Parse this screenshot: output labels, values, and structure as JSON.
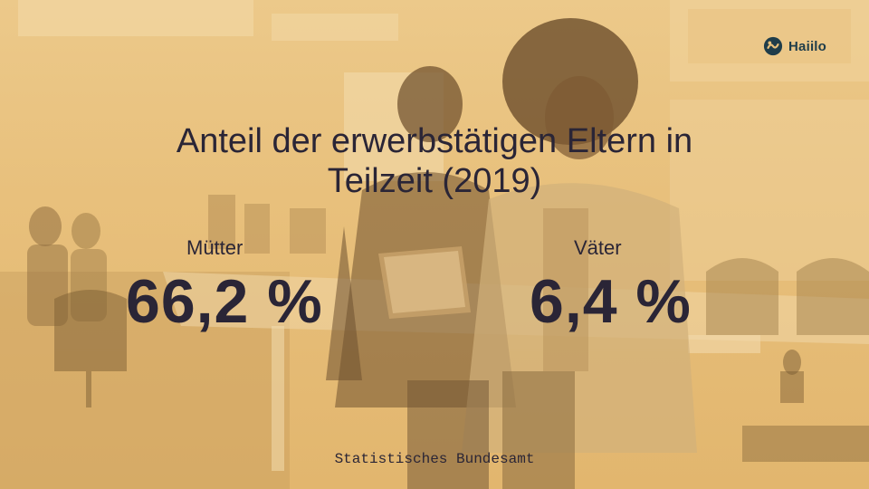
{
  "brand": {
    "logo_text": "Haiilo",
    "logo_icon": "haiilo-logo-icon",
    "color": "#1f3d4a"
  },
  "title": {
    "line1": "Anteil der erwerbstätigen Eltern in",
    "line2": "Teilzeit (2019)"
  },
  "stats": {
    "mothers": {
      "label": "Mütter",
      "value": "66,2 %"
    },
    "fathers": {
      "label": "Väter",
      "value": "6,4 %"
    }
  },
  "source": "Statistisches Bundesamt",
  "colors": {
    "overlay": "#e8c07c",
    "text": "#2a2536"
  }
}
